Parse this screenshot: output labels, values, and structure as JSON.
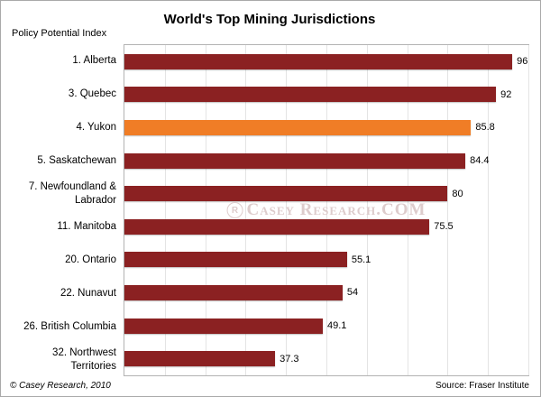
{
  "title": "World's Top Mining Jurisdictions",
  "axis_label": "Policy Potential Index",
  "watermark": {
    "symbol": "R",
    "text": "Casey Research.COM"
  },
  "footer": {
    "copyright": "© Casey Research, 2010",
    "source": "Source: Fraser Institute"
  },
  "colors": {
    "bar": "#8b2122",
    "highlight": "#f07d26",
    "grid": "#e4e4e4",
    "plot_border": "#b3b3b3"
  },
  "chart_data": {
    "type": "bar",
    "orientation": "horizontal",
    "title": "World's Top Mining Jurisdictions",
    "xlabel": "Policy Potential Index",
    "xlim": [
      0,
      100
    ],
    "grid": true,
    "legend": false,
    "categories": [
      "1. Alberta",
      "3. Quebec",
      "4. Yukon",
      "5. Saskatchewan",
      "7. Newfoundland & Labrador",
      "11. Manitoba",
      "20. Ontario",
      "22. Nunavut",
      "26. British Columbia",
      "32. Northwest Territories"
    ],
    "values": [
      96,
      92,
      85.8,
      84.4,
      80,
      75.5,
      55.1,
      54,
      49.1,
      37.3
    ],
    "value_labels": [
      "96",
      "92",
      "85.8",
      "84.4",
      "80",
      "75.5",
      "55.1",
      "54",
      "49.1",
      "37.3"
    ],
    "highlight_index": 2,
    "highlight_category": "4. Yukon"
  }
}
